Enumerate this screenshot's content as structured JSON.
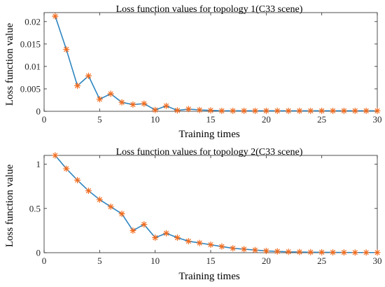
{
  "colors": {
    "line": "#2e86c1",
    "marker": "#f26b1d",
    "axis": "#262626"
  },
  "chart_data": [
    {
      "type": "line",
      "title": "Loss function values for topology 1(C33 scene)",
      "xlabel": "Training times",
      "ylabel": "Loss function value",
      "xlim": [
        0,
        30
      ],
      "ylim": [
        0,
        0.022
      ],
      "xticks": [
        0,
        5,
        10,
        15,
        20,
        25,
        30
      ],
      "xtick_labels": [
        "0",
        "5",
        "10",
        "15",
        "20",
        "25",
        "30"
      ],
      "yticks": [
        0,
        0.005,
        0.01,
        0.015,
        0.02
      ],
      "ytick_labels": [
        "0",
        "0.005",
        "0.01",
        "0.015",
        "0.02"
      ],
      "grid": false,
      "marker": "asterisk",
      "x": [
        1,
        2,
        3,
        4,
        5,
        6,
        7,
        8,
        9,
        10,
        11,
        12,
        13,
        14,
        15,
        16,
        17,
        18,
        19,
        20,
        21,
        22,
        23,
        24,
        25,
        26,
        27,
        28,
        29,
        30
      ],
      "y": [
        0.0212,
        0.0138,
        0.0057,
        0.0079,
        0.0027,
        0.0039,
        0.002,
        0.0015,
        0.0017,
        0.0003,
        0.0012,
        0.0002,
        0.0005,
        0.0003,
        0.0002,
        0.0001,
        0.0001,
        0.0001,
        0.0001,
        0.0001,
        0.0001,
        0.0001,
        0.0001,
        0.0001,
        0.0001,
        0.0001,
        0.0001,
        0.0001,
        0.0001,
        0.0001
      ]
    },
    {
      "type": "line",
      "title": "Loss function values for topology 2(C33 scene)",
      "xlabel": "Training times",
      "ylabel": "Loss function value",
      "xlim": [
        0,
        30
      ],
      "ylim": [
        0,
        1.1
      ],
      "xticks": [
        0,
        5,
        10,
        15,
        20,
        25,
        30
      ],
      "xtick_labels": [
        "0",
        "5",
        "10",
        "15",
        "20",
        "25",
        "30"
      ],
      "yticks": [
        0,
        0.5,
        1
      ],
      "ytick_labels": [
        "0",
        "0.5",
        "1"
      ],
      "grid": false,
      "marker": "asterisk",
      "x": [
        1,
        2,
        3,
        4,
        5,
        6,
        7,
        8,
        9,
        10,
        11,
        12,
        13,
        14,
        15,
        16,
        17,
        18,
        19,
        20,
        21,
        22,
        23,
        24,
        25,
        26,
        27,
        28,
        29,
        30
      ],
      "y": [
        1.1,
        0.95,
        0.82,
        0.7,
        0.6,
        0.52,
        0.44,
        0.25,
        0.32,
        0.17,
        0.22,
        0.17,
        0.13,
        0.11,
        0.09,
        0.07,
        0.05,
        0.04,
        0.03,
        0.02,
        0.015,
        0.01,
        0.008,
        0.006,
        0.005,
        0.004,
        0.003,
        0.002,
        0.002,
        0.002
      ]
    }
  ]
}
